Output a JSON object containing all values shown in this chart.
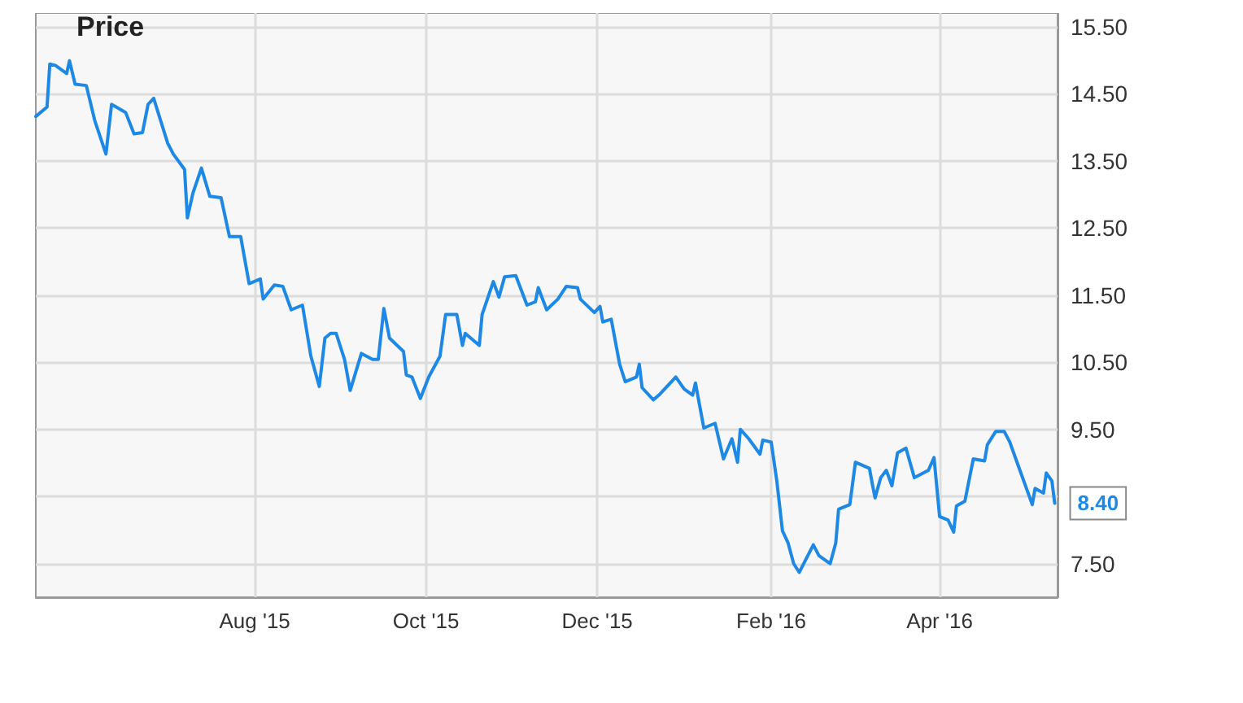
{
  "chart_data": {
    "type": "line",
    "x": [
      "2015-05-15",
      "2015-05-19",
      "2015-05-20",
      "2015-05-22",
      "2015-05-26",
      "2015-05-27",
      "2015-05-29",
      "2015-06-02",
      "2015-06-05",
      "2015-06-09",
      "2015-06-11",
      "2015-06-16",
      "2015-06-19",
      "2015-06-22",
      "2015-06-24",
      "2015-06-26",
      "2015-07-01",
      "2015-07-03",
      "2015-07-07",
      "2015-07-08",
      "2015-07-10",
      "2015-07-13",
      "2015-07-16",
      "2015-07-20",
      "2015-07-23",
      "2015-07-27",
      "2015-07-30",
      "2015-08-03",
      "2015-08-04",
      "2015-08-08",
      "2015-08-11",
      "2015-08-14",
      "2015-08-18",
      "2015-08-21",
      "2015-08-24",
      "2015-08-26",
      "2015-08-28",
      "2015-08-30",
      "2015-09-02",
      "2015-09-04",
      "2015-09-08",
      "2015-09-12",
      "2015-09-14",
      "2015-09-16",
      "2015-09-18",
      "2015-09-23",
      "2015-09-24",
      "2015-09-26",
      "2015-09-29",
      "2015-10-02",
      "2015-10-06",
      "2015-10-08",
      "2015-10-12",
      "2015-10-14",
      "2015-10-15",
      "2015-10-20",
      "2015-10-21",
      "2015-10-25",
      "2015-10-27",
      "2015-10-29",
      "2015-11-02",
      "2015-11-06",
      "2015-11-09",
      "2015-11-10",
      "2015-11-13",
      "2015-11-17",
      "2015-11-20",
      "2015-11-24",
      "2015-11-25",
      "2015-11-30",
      "2015-12-02",
      "2015-12-03",
      "2015-12-06",
      "2015-12-09",
      "2015-12-11",
      "2015-12-15",
      "2015-12-16",
      "2015-12-17",
      "2015-12-21",
      "2015-12-23",
      "2015-12-29",
      "2016-01-01",
      "2016-01-04",
      "2016-01-05",
      "2016-01-08",
      "2016-01-12",
      "2016-01-15",
      "2016-01-18",
      "2016-01-20",
      "2016-01-21",
      "2016-01-24",
      "2016-01-28",
      "2016-01-29",
      "2016-02-01",
      "2016-02-03",
      "2016-02-05",
      "2016-02-07",
      "2016-02-09",
      "2016-02-11",
      "2016-02-16",
      "2016-02-18",
      "2016-02-22",
      "2016-02-24",
      "2016-02-25",
      "2016-02-29",
      "2016-03-02",
      "2016-03-07",
      "2016-03-08",
      "2016-03-09",
      "2016-03-11",
      "2016-03-13",
      "2016-03-15",
      "2016-03-17",
      "2016-03-20",
      "2016-03-23",
      "2016-03-28",
      "2016-03-30",
      "2016-04-01",
      "2016-04-04",
      "2016-04-06",
      "2016-04-07",
      "2016-04-10",
      "2016-04-13",
      "2016-04-17",
      "2016-04-18",
      "2016-04-21",
      "2016-04-24",
      "2016-04-26",
      "2016-04-29",
      "2016-05-04",
      "2016-05-05",
      "2016-05-08",
      "2016-05-09",
      "2016-05-11",
      "2016-05-12"
    ],
    "series": [
      {
        "name": "Price",
        "color": "#1e88e5",
        "values": [
          14.16,
          14.3,
          14.94,
          14.92,
          14.8,
          14.99,
          14.64,
          14.62,
          14.1,
          13.6,
          14.34,
          14.22,
          13.9,
          13.92,
          14.34,
          14.43,
          13.76,
          13.6,
          13.37,
          12.65,
          13.02,
          13.39,
          12.97,
          12.95,
          12.37,
          12.37,
          11.67,
          11.74,
          11.44,
          11.65,
          11.63,
          11.28,
          11.35,
          10.59,
          10.14,
          10.86,
          10.93,
          10.93,
          10.54,
          10.08,
          10.63,
          10.54,
          10.54,
          11.3,
          10.86,
          10.66,
          10.31,
          10.28,
          9.96,
          10.28,
          10.59,
          11.21,
          11.21,
          10.75,
          10.93,
          10.75,
          11.21,
          11.7,
          11.47,
          11.77,
          11.79,
          11.35,
          11.4,
          11.61,
          11.28,
          11.44,
          11.63,
          11.61,
          11.44,
          11.24,
          11.33,
          11.1,
          11.14,
          10.47,
          10.21,
          10.28,
          10.47,
          10.12,
          9.94,
          10.01,
          10.28,
          10.1,
          10.01,
          10.19,
          9.52,
          9.59,
          9.06,
          9.36,
          9.01,
          9.5,
          9.36,
          9.13,
          9.34,
          9.31,
          8.73,
          7.99,
          7.81,
          7.5,
          7.37,
          7.78,
          7.62,
          7.5,
          7.81,
          8.31,
          8.38,
          9.01,
          8.92,
          8.69,
          8.48,
          8.78,
          8.89,
          8.66,
          9.15,
          9.22,
          8.78,
          8.89,
          9.08,
          8.2,
          8.15,
          7.97,
          8.36,
          8.43,
          9.06,
          9.03,
          9.27,
          9.47,
          9.47,
          9.31,
          8.96,
          8.38,
          8.62,
          8.55,
          8.85,
          8.73,
          8.4
        ]
      }
    ],
    "xlim": [
      "2015-05-15",
      "2016-05-13"
    ],
    "xticks": [
      {
        "value": "2015-08-01",
        "label": "Aug '15"
      },
      {
        "value": "2015-10-01",
        "label": "Oct '15"
      },
      {
        "value": "2015-12-01",
        "label": "Dec '15"
      },
      {
        "value": "2016-02-01",
        "label": "Feb '16"
      },
      {
        "value": "2016-04-01",
        "label": "Apr '16"
      }
    ],
    "ylim": [
      7.0,
      15.7
    ],
    "yticks": [
      {
        "value": 7.5,
        "label": "7.50"
      },
      {
        "value": 8.5,
        "label": null
      },
      {
        "value": 9.5,
        "label": "9.50"
      },
      {
        "value": 10.5,
        "label": "10.50"
      },
      {
        "value": 11.5,
        "label": "11.50"
      },
      {
        "value": 12.5,
        "label": "12.50"
      },
      {
        "value": 13.5,
        "label": "13.50"
      },
      {
        "value": 14.5,
        "label": "14.50"
      },
      {
        "value": 15.5,
        "label": "15.50"
      }
    ],
    "annotations": [
      {
        "text": "8.40",
        "x": "2016-05-12",
        "y": 8.4
      }
    ],
    "grid": true,
    "legend": "top left",
    "marker": "none",
    "line_style": "solid"
  }
}
